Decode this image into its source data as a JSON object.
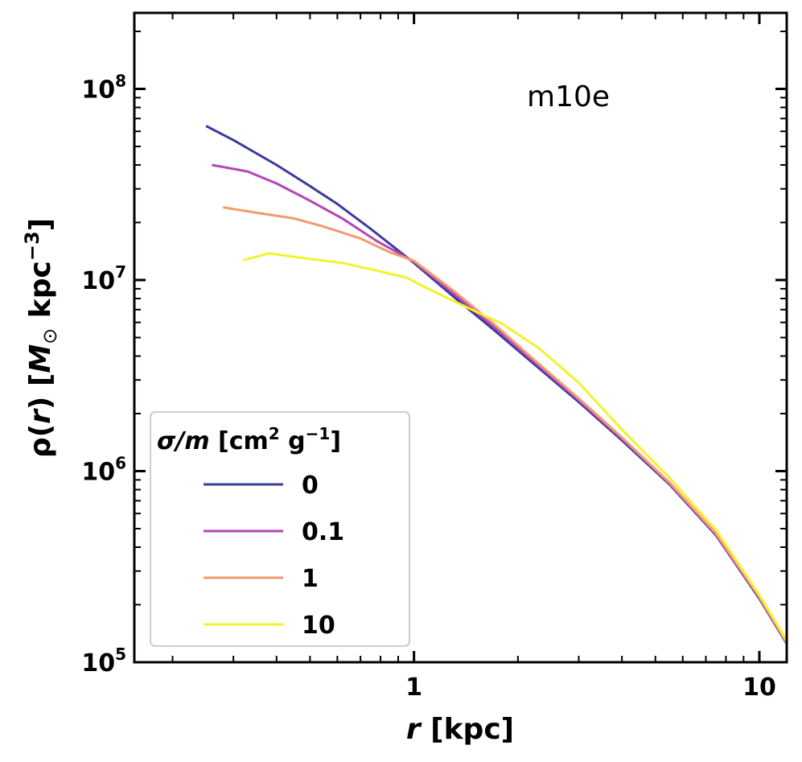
{
  "chart_data": {
    "type": "line",
    "title": "",
    "annotation": "m10e",
    "xlabel": {
      "var": "r",
      "unit": " [kpc]"
    },
    "ylabel": {
      "prefix": "ρ(",
      "var": "r",
      "mid": ") [",
      "msym": "M",
      "msub": "⊙",
      "unit": " kpc",
      "sup": "−3",
      "end": "]"
    },
    "xscale": "log",
    "yscale": "log",
    "xlim": [
      0.155,
      12.0
    ],
    "ylim": [
      100000,
      250000000
    ],
    "x_tick_labels": [
      {
        "value": 1,
        "label": "1"
      },
      {
        "value": 10,
        "label": "10"
      }
    ],
    "y_tick_labels": [
      {
        "value": 100000,
        "base": "10",
        "exp": "5"
      },
      {
        "value": 1000000,
        "base": "10",
        "exp": "6"
      },
      {
        "value": 10000000,
        "base": "10",
        "exp": "7"
      },
      {
        "value": 100000000,
        "base": "10",
        "exp": "8"
      }
    ],
    "legend": {
      "title_var": "σ/m",
      "title_unit": " [cm",
      "title_sup1": "2",
      "title_mid": " g",
      "title_sup2": "−1",
      "title_end": "]",
      "position": "lower-left"
    },
    "series": [
      {
        "name": "0",
        "color": "#3b3b9c",
        "x": [
          0.25,
          0.3,
          0.4,
          0.5,
          0.6,
          0.75,
          1.0,
          1.3,
          1.7,
          2.2,
          3.0,
          4.0,
          5.5,
          7.5,
          10.0,
          12.0
        ],
        "y": [
          64000000,
          54000000,
          40000000,
          31000000,
          25000000,
          18500000,
          12300000,
          8200000,
          5500000,
          3700000,
          2300000,
          1450000,
          850000,
          460000,
          215000,
          125000
        ]
      },
      {
        "name": "0.1",
        "color": "#b446b8",
        "x": [
          0.26,
          0.33,
          0.4,
          0.5,
          0.62,
          0.78,
          1.0,
          1.3,
          1.7,
          2.2,
          3.0,
          4.0,
          5.5,
          7.5,
          10.0,
          12.0
        ],
        "y": [
          40000000,
          37000000,
          32000000,
          26000000,
          21000000,
          16000000,
          12500000,
          8500000,
          5700000,
          3800000,
          2350000,
          1480000,
          860000,
          465000,
          218000,
          126000
        ]
      },
      {
        "name": "1",
        "color": "#f39a6f",
        "x": [
          0.28,
          0.35,
          0.45,
          0.55,
          0.7,
          0.85,
          1.0,
          1.3,
          1.7,
          2.2,
          3.0,
          4.0,
          5.5,
          7.5,
          10.0,
          12.0
        ],
        "y": [
          24000000,
          22500000,
          21000000,
          19000000,
          16500000,
          14000000,
          12600000,
          8800000,
          5900000,
          3900000,
          2400000,
          1500000,
          870000,
          470000,
          220000,
          127000
        ]
      },
      {
        "name": "10",
        "color": "#f2f22f",
        "x": [
          0.32,
          0.38,
          0.48,
          0.62,
          0.78,
          0.95,
          1.1,
          1.4,
          1.8,
          2.3,
          3.0,
          4.0,
          5.5,
          7.5,
          10.0,
          12.0
        ],
        "y": [
          12700000,
          13800000,
          13000000,
          12300000,
          11200000,
          10300000,
          9000000,
          7300000,
          5900000,
          4400000,
          2900000,
          1650000,
          920000,
          490000,
          225000,
          130000
        ]
      }
    ]
  }
}
